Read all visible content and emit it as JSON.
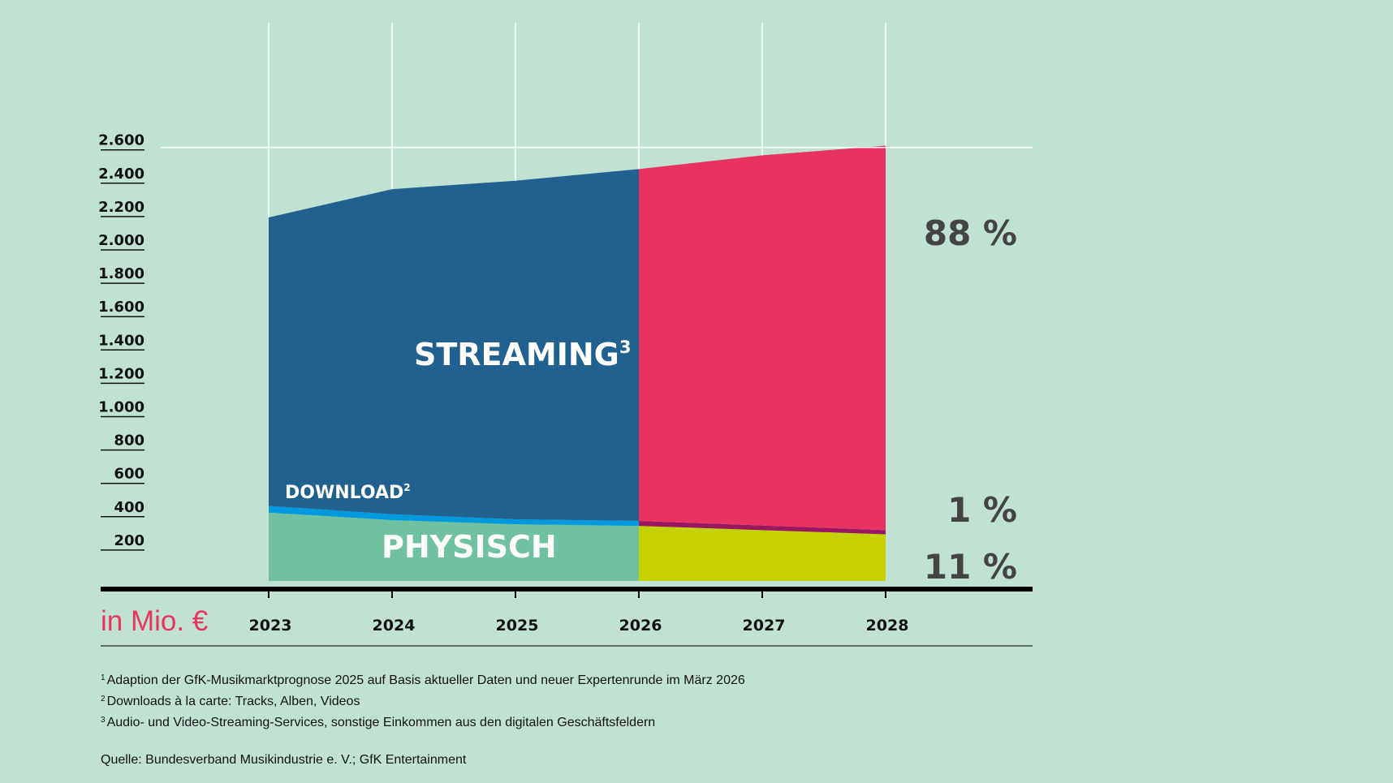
{
  "chart_data": {
    "type": "area",
    "x": [
      "2023",
      "2024",
      "2025",
      "2026",
      "2027",
      "2028"
    ],
    "x_split": "2026",
    "series": [
      {
        "name": "PHYSISCH",
        "values": [
          410,
          365,
          340,
          330,
          305,
          280
        ],
        "color_actual": "#6fc19f",
        "color_forecast": "#c6d200"
      },
      {
        "name": "DOWNLOAD",
        "name_sup": "2",
        "values": [
          40,
          35,
          30,
          30,
          28,
          25
        ],
        "color_actual": "#0099dd",
        "color_forecast": "#9b1660"
      },
      {
        "name": "STREAMING",
        "name_sup": "3",
        "values": [
          1730,
          1950,
          2030,
          2110,
          2220,
          2305
        ],
        "color_actual": "#206190",
        "color_forecast": "#e83262"
      }
    ],
    "y_ticks": [
      "200",
      "400",
      "600",
      "800",
      "1.000",
      "1.200",
      "1.400",
      "1.600",
      "1.800",
      "2.000",
      "2.200",
      "2.400",
      "2.600"
    ],
    "y_tick_values": [
      200,
      400,
      600,
      800,
      1000,
      1200,
      1400,
      1600,
      1800,
      2000,
      2200,
      2400,
      2600
    ],
    "ylim": [
      0,
      2600
    ],
    "unit_label": "in Mio. €",
    "share_labels": [
      {
        "text": "88 %",
        "series": "STREAMING"
      },
      {
        "text": "1 %",
        "series": "DOWNLOAD"
      },
      {
        "text": "11 %",
        "series": "PHYSISCH"
      }
    ],
    "grid": true
  },
  "footnotes": [
    {
      "num": "1",
      "text": "Adaption der GfK-Musikmarktprognose 2025 auf Basis aktueller Daten und neuer Expertenrunde im März 2026"
    },
    {
      "num": "2",
      "text": "Downloads à la carte: Tracks, Alben, Videos"
    },
    {
      "num": "3",
      "text": "Audio- und Video-Streaming-Services, sonstige Einkommen aus den digitalen Geschäftsfeldern"
    }
  ],
  "source": "Quelle: Bundesverband Musikindustrie e. V.; GfK Entertainment"
}
